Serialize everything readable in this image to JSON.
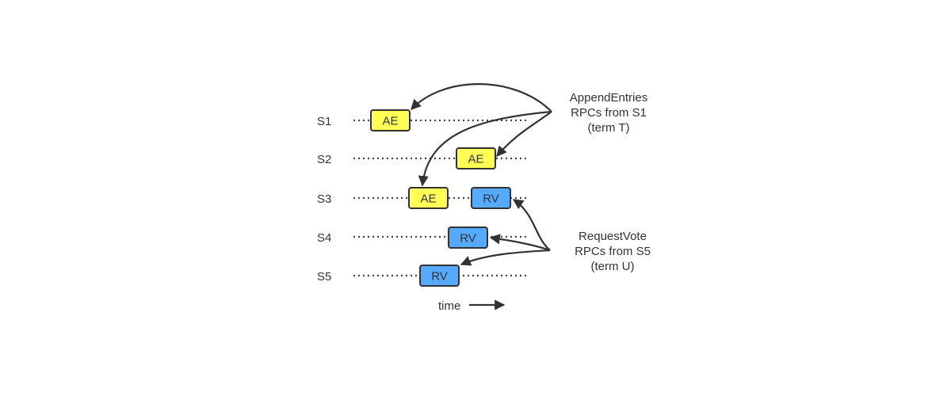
{
  "servers": [
    {
      "label": "S1"
    },
    {
      "label": "S2"
    },
    {
      "label": "S3"
    },
    {
      "label": "S4"
    },
    {
      "label": "S5"
    }
  ],
  "boxes": [
    {
      "server": "S1",
      "label": "AE",
      "kind": "append-entries",
      "color": "#ffff55"
    },
    {
      "server": "S2",
      "label": "AE",
      "kind": "append-entries",
      "color": "#ffff55"
    },
    {
      "server": "S3",
      "label": "AE",
      "kind": "append-entries",
      "color": "#ffff55"
    },
    {
      "server": "S3",
      "label": "RV",
      "kind": "request-vote",
      "color": "#55a9ff"
    },
    {
      "server": "S4",
      "label": "RV",
      "kind": "request-vote",
      "color": "#55a9ff"
    },
    {
      "server": "S5",
      "label": "RV",
      "kind": "request-vote",
      "color": "#55a9ff"
    }
  ],
  "annotations": {
    "append_entries": [
      "AppendEntries",
      "RPCs from S1",
      "(term T)"
    ],
    "request_vote": [
      "RequestVote",
      "RPCs from S5",
      "(term U)"
    ]
  },
  "time_label": "time",
  "colors": {
    "append_entries": "#ffff55",
    "request_vote": "#55a9ff",
    "ink": "#333333"
  }
}
